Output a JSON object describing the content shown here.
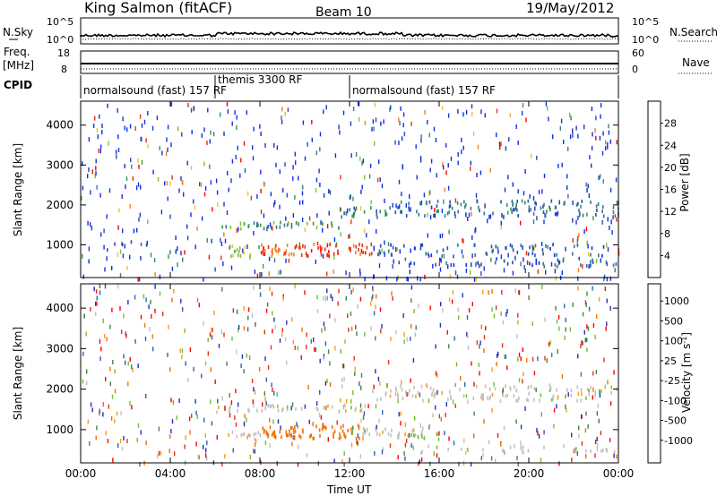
{
  "header": {
    "title": "King Salmon (fitACF)",
    "beam": "Beam 10",
    "date": "19/May/2012"
  },
  "strip_nsky": {
    "left_label": "N.Sky",
    "right_label": "N.Search",
    "ticks_left": [
      "10^5",
      "10^0"
    ],
    "ticks_right": [
      "10^5",
      "10^0"
    ]
  },
  "strip_freq": {
    "left_label_top": "Freq.",
    "left_label_bottom": "[MHz]",
    "right_label": "Nave",
    "ticks_left": [
      "18",
      "8"
    ],
    "ticks_right": [
      "60",
      "0"
    ]
  },
  "cpid": {
    "label": "CPID",
    "segments": [
      {
        "text": "normalsound (fast) 157 RF",
        "start": "00:00",
        "end": "06:00"
      },
      {
        "text": "themis 3300 RF",
        "start": "06:00",
        "end": "12:00"
      },
      {
        "text": "normalsound (fast) 157 RF",
        "start": "12:00",
        "end": "24:00"
      }
    ]
  },
  "x_axis": {
    "label": "Time UT",
    "ticks": [
      "00:00",
      "04:00",
      "08:00",
      "12:00",
      "16:00",
      "20:00",
      "00:00"
    ]
  },
  "colors": {
    "power_scale": [
      "#1030e0",
      "#2850b0",
      "#3a7a88",
      "#2e9a50",
      "#80c030",
      "#f0c030",
      "#f08020",
      "#e83010",
      "#ff0000"
    ],
    "velocity_scale": [
      "#2030c0",
      "#3060b0",
      "#3a8a40",
      "#70c030",
      "#c0c0c0",
      "#f0a020",
      "#f07000",
      "#e83010",
      "#ff0000"
    ]
  },
  "chart_data": [
    {
      "type": "heatmap",
      "title": "Power",
      "ylabel": "Slant Range [km]",
      "xlabel": "",
      "xlim": [
        0,
        24
      ],
      "ylim": [
        180,
        4600
      ],
      "yticks": [
        "1000",
        "2000",
        "3000",
        "4000"
      ],
      "colorbar": {
        "label": "Power [dB]",
        "ticks": [
          "4",
          "8",
          "12",
          "16",
          "20",
          "24",
          "28"
        ],
        "range": [
          0,
          32
        ]
      },
      "bands": [
        {
          "t_start": 0.5,
          "t_end": 3,
          "range_center": 1000,
          "range_width": 250,
          "value": 5,
          "density": 0.15
        },
        {
          "t_start": 6,
          "t_end": 11.5,
          "range_center": 1520,
          "range_width": 170,
          "value": 12,
          "density": 0.6
        },
        {
          "t_start": 11.5,
          "t_end": 14,
          "range_center": 1850,
          "range_width": 260,
          "value": 10,
          "density": 0.55
        },
        {
          "t_start": 14,
          "t_end": 24,
          "range_center": 1950,
          "range_width": 400,
          "value": 8,
          "density": 0.45
        },
        {
          "t_start": 6.5,
          "t_end": 8,
          "range_center": 860,
          "range_width": 300,
          "value": 16,
          "density": 0.6
        },
        {
          "t_start": 8,
          "t_end": 13,
          "range_center": 920,
          "range_width": 320,
          "value": 26,
          "density": 0.75
        },
        {
          "t_start": 13,
          "t_end": 24,
          "range_center": 900,
          "range_width": 300,
          "value": 6,
          "density": 0.35
        },
        {
          "t_start": 14,
          "t_end": 24,
          "range_center": 600,
          "range_width": 200,
          "value": 6,
          "density": 0.35
        }
      ]
    },
    {
      "type": "heatmap",
      "title": "Velocity",
      "ylabel": "Slant Range [km]",
      "xlabel": "Time UT",
      "xlim": [
        0,
        24
      ],
      "ylim": [
        180,
        4600
      ],
      "yticks": [
        "1000",
        "2000",
        "3000",
        "4000"
      ],
      "colorbar": {
        "label": "Velocity [m s^-1]",
        "ticks": [
          "1000",
          "500",
          "100",
          "25",
          "-25",
          "-100",
          "-500",
          "-1000"
        ]
      },
      "bands": [
        {
          "t_start": 6,
          "t_end": 13,
          "range_center": 1560,
          "range_width": 170,
          "value": 0,
          "density": 0.6
        },
        {
          "t_start": 13,
          "t_end": 24,
          "range_center": 1950,
          "range_width": 400,
          "value": 0,
          "density": 0.4
        },
        {
          "t_start": 6.5,
          "t_end": 8,
          "range_center": 850,
          "range_width": 300,
          "value": 0,
          "density": 0.5
        },
        {
          "t_start": 8,
          "t_end": 12.5,
          "range_center": 980,
          "range_width": 340,
          "value": -150,
          "density": 0.75
        },
        {
          "t_start": 12.5,
          "t_end": 15.5,
          "range_center": 950,
          "range_width": 260,
          "value": 0,
          "density": 0.6
        },
        {
          "t_start": 14.5,
          "t_end": 16,
          "range_center": 900,
          "range_width": 200,
          "value": 60,
          "density": 0.5
        },
        {
          "t_start": 15,
          "t_end": 24,
          "range_center": 550,
          "range_width": 180,
          "value": 0,
          "density": 0.35
        }
      ]
    }
  ]
}
